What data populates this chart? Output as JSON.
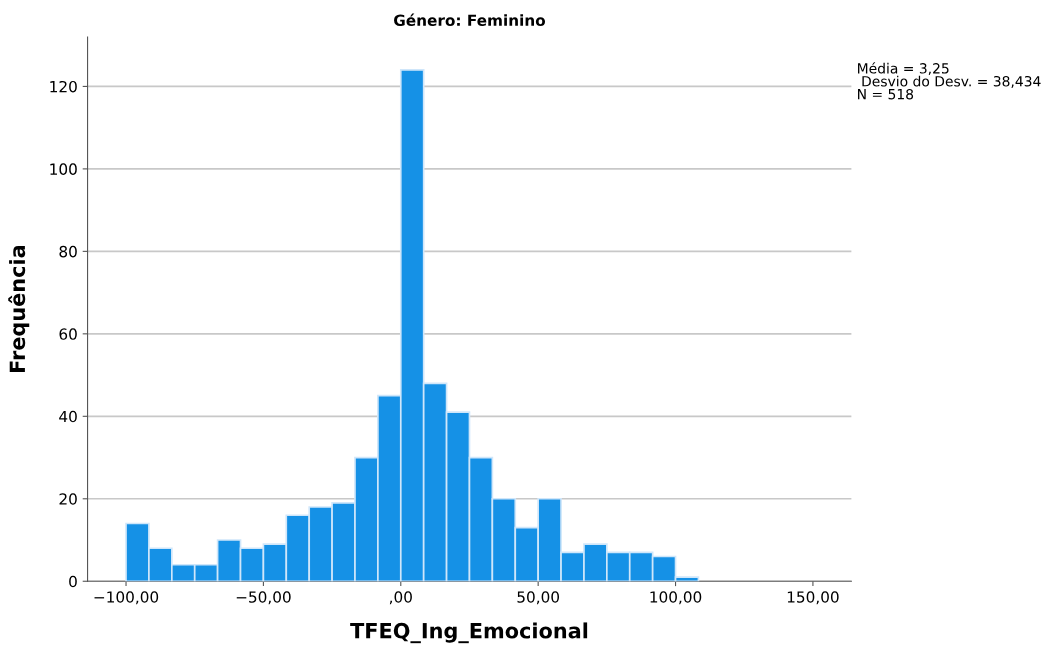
{
  "chart_data": {
    "type": "histogram",
    "title": "Género: Feminino",
    "xlabel": "TFEQ_Ing_Emocional",
    "ylabel": "Frequência",
    "bins": [
      -100,
      -91.67,
      -83.33,
      -75,
      -66.67,
      -58.33,
      -50,
      -41.67,
      -33.33,
      -25,
      -16.67,
      -8.33,
      0,
      8.33,
      16.67,
      25,
      33.33,
      41.67,
      50,
      58.33,
      66.67,
      75,
      83.33,
      91.67,
      100,
      108.33
    ],
    "values": [
      14,
      8,
      4,
      4,
      10,
      8,
      9,
      16,
      18,
      19,
      30,
      45,
      124,
      48,
      41,
      30,
      20,
      13,
      20,
      7,
      9,
      7,
      7,
      6,
      1
    ],
    "color": "#1591e6",
    "xlim": [
      -114,
      164
    ],
    "xticks": [
      {
        "value": -100,
        "label": "−100,00"
      },
      {
        "value": -50,
        "label": "−50,00"
      },
      {
        "value": 0,
        "label": ",00"
      },
      {
        "value": 50,
        "label": "50,00"
      },
      {
        "value": 100,
        "label": "100,00"
      },
      {
        "value": 150,
        "label": "150,00"
      }
    ],
    "ylim": [
      0,
      132
    ],
    "yticks": [
      0,
      20,
      40,
      60,
      80,
      100,
      120
    ],
    "grid": "y",
    "annotations": [
      "Média = 3,25\n Desvio do Desv. = 38,434\nN = 518"
    ]
  }
}
